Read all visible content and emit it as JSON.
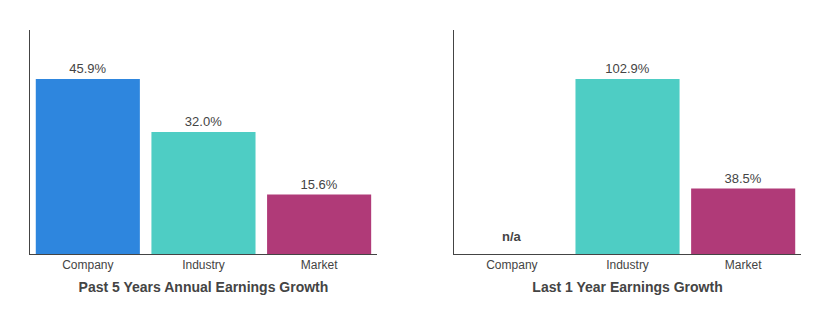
{
  "chart_data": [
    {
      "type": "bar",
      "title": "Past 5 Years Annual Earnings Growth",
      "categories": [
        "Company",
        "Industry",
        "Market"
      ],
      "values": [
        45.9,
        32.0,
        15.6
      ],
      "value_labels": [
        "45.9%",
        "32.0%",
        "15.6%"
      ],
      "colors": [
        "#2e86de",
        "#4ecdc4",
        "#b03a78"
      ],
      "ylim": [
        0,
        58.752
      ],
      "yticks": [],
      "data_labels": true,
      "tick_labels": "x"
    },
    {
      "type": "bar",
      "title": "Last 1 Year Earnings Growth",
      "categories": [
        "Company",
        "Industry",
        "Market"
      ],
      "values": [
        null,
        102.9,
        38.5
      ],
      "value_labels": [
        "n/a",
        "102.9%",
        "38.5%"
      ],
      "colors": [
        "#2e86de",
        "#4ecdc4",
        "#b03a78"
      ],
      "ylim": [
        0,
        131.712
      ],
      "yticks": [],
      "data_labels": true,
      "tick_labels": "x"
    }
  ]
}
